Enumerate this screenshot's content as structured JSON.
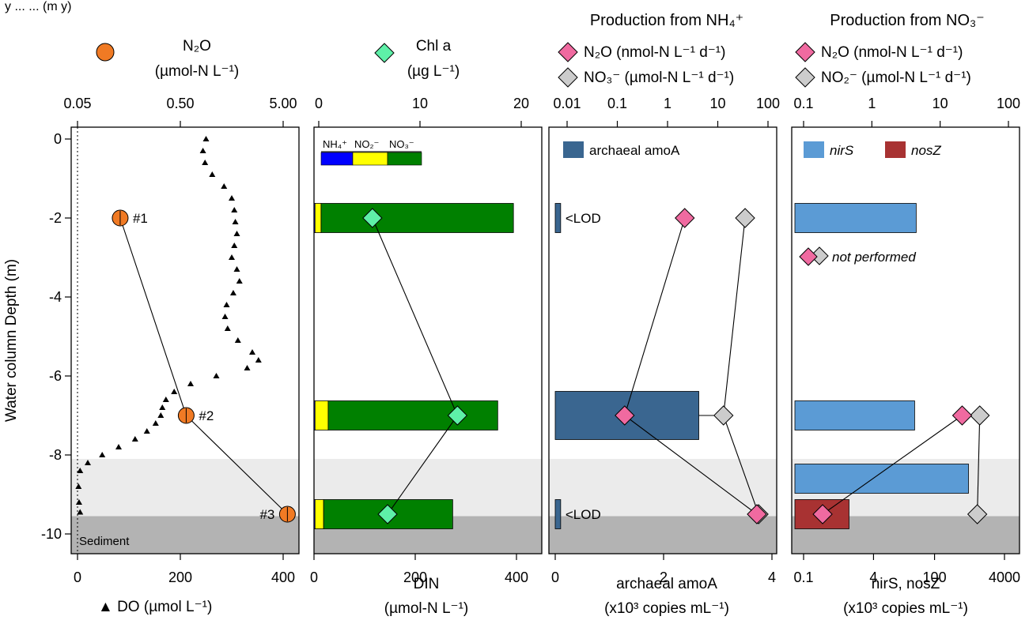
{
  "header_fragment": "y ... ... (m y)",
  "y_axis": {
    "label": "Water column Depth (m)",
    "ticks": [
      0,
      -2,
      -4,
      -6,
      -8,
      -10
    ],
    "range": [
      0.3,
      -10.5
    ]
  },
  "zones": {
    "sediment_label": "Sediment",
    "light_top": -8.1,
    "dark_top": -9.55
  },
  "panel1": {
    "n2o_title": "N₂O",
    "n2o_unit": "(µmol-N L⁻¹)",
    "top_ticks": [
      "0.05",
      "0.50",
      "5.00"
    ],
    "bottom_ticks": [
      "0",
      "200",
      "400"
    ],
    "bottom_label": "▲ DO (µmol L⁻¹)",
    "n2o_color": "#f07a24",
    "n2o": [
      {
        "depth": -2,
        "value": 0.13,
        "label": "#1"
      },
      {
        "depth": -7,
        "value": 0.57,
        "label": "#2"
      },
      {
        "depth": -9.5,
        "value": 5.5,
        "label": "#3"
      }
    ],
    "do_profile": [
      [
        250,
        0
      ],
      [
        244,
        -0.3
      ],
      [
        248,
        -0.6
      ],
      [
        262,
        -0.9
      ],
      [
        285,
        -1.2
      ],
      [
        300,
        -1.5
      ],
      [
        305,
        -1.8
      ],
      [
        307,
        -2.1
      ],
      [
        310,
        -2.4
      ],
      [
        305,
        -2.7
      ],
      [
        300,
        -3.0
      ],
      [
        310,
        -3.3
      ],
      [
        315,
        -3.6
      ],
      [
        303,
        -3.9
      ],
      [
        290,
        -4.2
      ],
      [
        287,
        -4.5
      ],
      [
        292,
        -4.8
      ],
      [
        312,
        -5.1
      ],
      [
        340,
        -5.4
      ],
      [
        352,
        -5.6
      ],
      [
        330,
        -5.8
      ],
      [
        270,
        -6.0
      ],
      [
        220,
        -6.2
      ],
      [
        188,
        -6.4
      ],
      [
        172,
        -6.6
      ],
      [
        165,
        -6.8
      ],
      [
        162,
        -7.0
      ],
      [
        152,
        -7.2
      ],
      [
        135,
        -7.4
      ],
      [
        112,
        -7.6
      ],
      [
        80,
        -7.8
      ],
      [
        48,
        -8.0
      ],
      [
        20,
        -8.2
      ],
      [
        5,
        -8.4
      ],
      [
        2,
        -8.8
      ],
      [
        3,
        -9.2
      ],
      [
        5,
        -9.45
      ]
    ]
  },
  "panel2": {
    "chl_title": "Chl a",
    "chl_unit": "(µg L⁻¹)",
    "top_ticks": [
      "0",
      "10",
      "20"
    ],
    "bottom_ticks": [
      "0",
      "200",
      "400"
    ],
    "bottom_label": "DIN",
    "bottom_unit": "(µmol-N L⁻¹)",
    "legend": [
      "NH₄⁺",
      "NO₂⁻",
      "NO₃⁻"
    ],
    "colors": {
      "nh4": "#0000ff",
      "no2": "#ffff00",
      "no3": "#008000",
      "chl": "#5ef0a8"
    },
    "din": [
      {
        "depth": -2,
        "nh4": 2,
        "no2": 12,
        "no3": 380
      },
      {
        "depth": -7,
        "nh4": 2,
        "no2": 26,
        "no3": 335
      },
      {
        "depth": -9.5,
        "nh4": 2,
        "no2": 17,
        "no3": 255
      }
    ],
    "chl": [
      {
        "depth": -2,
        "value": 5.3
      },
      {
        "depth": -7,
        "value": 13.7
      },
      {
        "depth": -9.5,
        "value": 6.8
      }
    ]
  },
  "panel3": {
    "title": "Production from NH₄⁺",
    "legend1": "N₂O (nmol-N L⁻¹ d⁻¹)",
    "legend2": "NO₃⁻ (µmol-N L⁻¹ d⁻¹)",
    "top_ticks": [
      "0.01",
      "0.1",
      "1",
      "10",
      "100"
    ],
    "bottom_ticks": [
      "0",
      "2",
      "4"
    ],
    "bottom_label": "archaeal amoA",
    "bottom_unit": "(x10³ copies mL⁻¹)",
    "bar_legend": "archaeal amoA",
    "lod": "<LOD",
    "bar_color": "#3a6690",
    "amoA": [
      {
        "depth": -2,
        "value": 0.1,
        "lod": true
      },
      {
        "depth": -7,
        "value": 2.65,
        "err": 0.4,
        "lod": false
      },
      {
        "depth": -9.5,
        "value": 0.1,
        "lod": true
      }
    ],
    "n2o_rate": [
      {
        "depth": -2,
        "value": 2.2
      },
      {
        "depth": -7,
        "value": 0.14
      },
      {
        "depth": -9.5,
        "value": 60
      }
    ],
    "no3_rate": [
      {
        "depth": -2,
        "value": 35
      },
      {
        "depth": -7,
        "value": 13
      },
      {
        "depth": -9.5,
        "value": 65
      }
    ]
  },
  "panel4": {
    "title": "Production from NO₃⁻",
    "legend1": "N₂O (nmol-N L⁻¹ d⁻¹)",
    "legend2": "NO₂⁻ (µmol-N L⁻¹ d⁻¹)",
    "top_ticks": [
      "0.1",
      "1",
      "10",
      "100"
    ],
    "bottom_ticks": [
      "0.1",
      "4",
      "100",
      "4000"
    ],
    "bottom_label": "nirS, nosZ",
    "bottom_unit": "(x10³ copies mL⁻¹)",
    "nirS_legend": "nirS",
    "nosZ_legend": "nosZ",
    "not_performed": "not performed",
    "colors": {
      "nirS": "#5b9bd5",
      "nosZ": "#a83232",
      "n2o": "#f06aa0",
      "no2": "#cccccc"
    },
    "nirS": [
      {
        "depth": -2,
        "value": 38
      },
      {
        "depth": -7,
        "value": 35
      },
      {
        "depth": -8.6,
        "value": 600
      }
    ],
    "nosZ": [
      {
        "depth": -9.5,
        "value": 1.1
      }
    ],
    "n2o_rate": [
      {
        "depth": -7,
        "value": 21
      },
      {
        "depth": -9.5,
        "value": 0.19
      }
    ],
    "no2_rate": [
      {
        "depth": -7,
        "value": 38
      },
      {
        "depth": -9.5,
        "value": 35
      }
    ]
  }
}
